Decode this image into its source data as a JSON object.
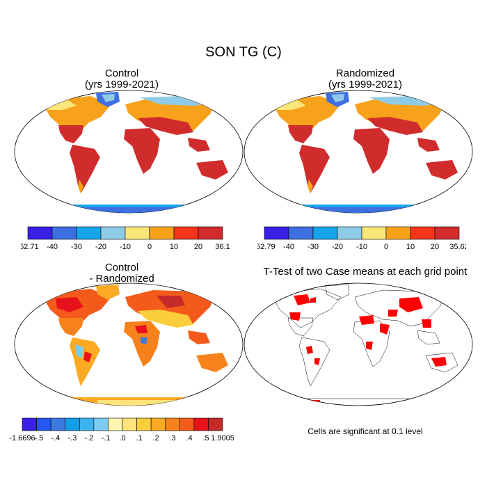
{
  "figure": {
    "title": "SON TG (C)"
  },
  "panels": [
    {
      "title_line1": "Control",
      "title_line2": "(yrs 1999-2021)",
      "colorbar": {
        "colors": [
          "#3a1fe6",
          "#3d6fe0",
          "#14a5eb",
          "#8fcbe6",
          "#fbe67a",
          "#f7a21a",
          "#f5341b",
          "#d12c2c"
        ],
        "labels": [
          "-52.71",
          "-40",
          "-30",
          "-20",
          "-10",
          "0",
          "10",
          "20",
          "36.1"
        ]
      }
    },
    {
      "title_line1": "Randomized",
      "title_line2": "(yrs 1999-2021)",
      "colorbar": {
        "colors": [
          "#3a1fe6",
          "#3d6fe0",
          "#14a5eb",
          "#8fcbe6",
          "#fbe67a",
          "#f7a21a",
          "#f5341b",
          "#d12c2c"
        ],
        "labels": [
          "-52.79",
          "-40",
          "-30",
          "-20",
          "-10",
          "0",
          "10",
          "20",
          "35.62"
        ]
      }
    },
    {
      "title_line1": "Control",
      "title_line2": "- Randomized",
      "colorbar": {
        "colors": [
          "#3a1fe6",
          "#2457f0",
          "#3d7ae0",
          "#149ee8",
          "#3cb3ee",
          "#7cccf2",
          "#fef6b0",
          "#fde37a",
          "#fccd3a",
          "#fbaa22",
          "#f7821c",
          "#f45a1a",
          "#e7121b",
          "#c42a2a"
        ],
        "labels": [
          "-1.6696",
          "-.5",
          "-.4",
          "-.3",
          "-.2",
          "-.1",
          ".0",
          ".1",
          ".2",
          ".3",
          ".4",
          ".5",
          "1.9005"
        ]
      }
    },
    {
      "title_line1": "T-Test of two Case means at each grid point",
      "note": "Cells are significant at 0.1 level"
    }
  ]
}
